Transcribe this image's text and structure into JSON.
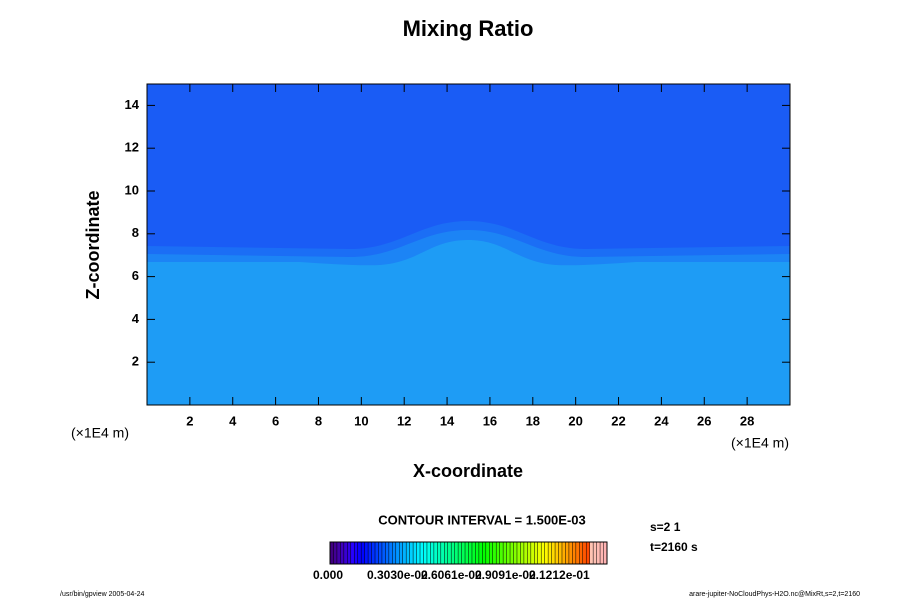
{
  "chart_data": {
    "type": "contour",
    "title": "Mixing Ratio",
    "x_label": "X-coordinate",
    "y_label": "Z-coordinate",
    "x_unit": "(×1E4 m)",
    "y_unit": "(×1E4 m)",
    "xlim": [
      0,
      30
    ],
    "ylim": [
      0,
      15
    ],
    "xticks": [
      2,
      4,
      6,
      8,
      10,
      12,
      14,
      16,
      18,
      20,
      22,
      24,
      26,
      28
    ],
    "yticks": [
      2,
      4,
      6,
      8,
      10,
      12,
      14
    ],
    "contour_interval": "CONTOUR INTERVAL = 1.500E-03",
    "colorbar": {
      "labels": [
        "0.000",
        "0.3030e-02",
        "0.6061e-02",
        "0.9091e-02",
        "0.1212e-01"
      ]
    },
    "info": [
      "s=2 1",
      "t=2160 s"
    ],
    "footer_left": "/usr/bin/gpview 2005-04-24",
    "footer_right": "arare-jupiter-NoCloudPhys-H2O.nc@MixRt,s=2,t=2160"
  }
}
